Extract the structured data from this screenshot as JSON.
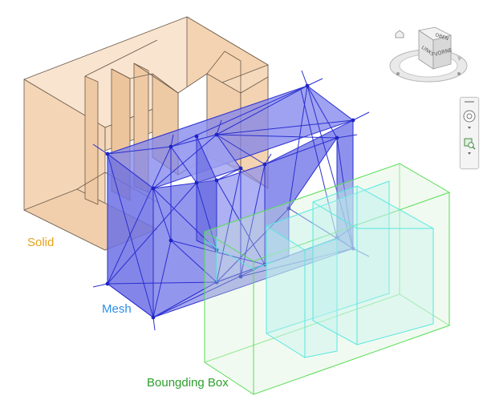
{
  "labels": {
    "solid": "Solid",
    "mesh": "Mesh",
    "bounding_box": "Boungding Box"
  },
  "viewcube": {
    "faces": [
      "OBEN",
      "LINKS",
      "VORNE"
    ]
  },
  "colors": {
    "solid_label": "#e8a21a",
    "mesh_label": "#2e8fe6",
    "bbox_label": "#2ca02c",
    "solid_fill": "#f6d2ad",
    "mesh_fill": "#6a6ee6",
    "mesh_line": "#2a2fd0",
    "bbox_line": "#55dd55",
    "bbox_inner_line": "#55e8e0"
  },
  "icons": {
    "viewcube": "view-cube-icon",
    "home": "home-icon",
    "steering_wheel": "full-navigation-wheel-icon",
    "zoom": "zoom-region-icon"
  }
}
